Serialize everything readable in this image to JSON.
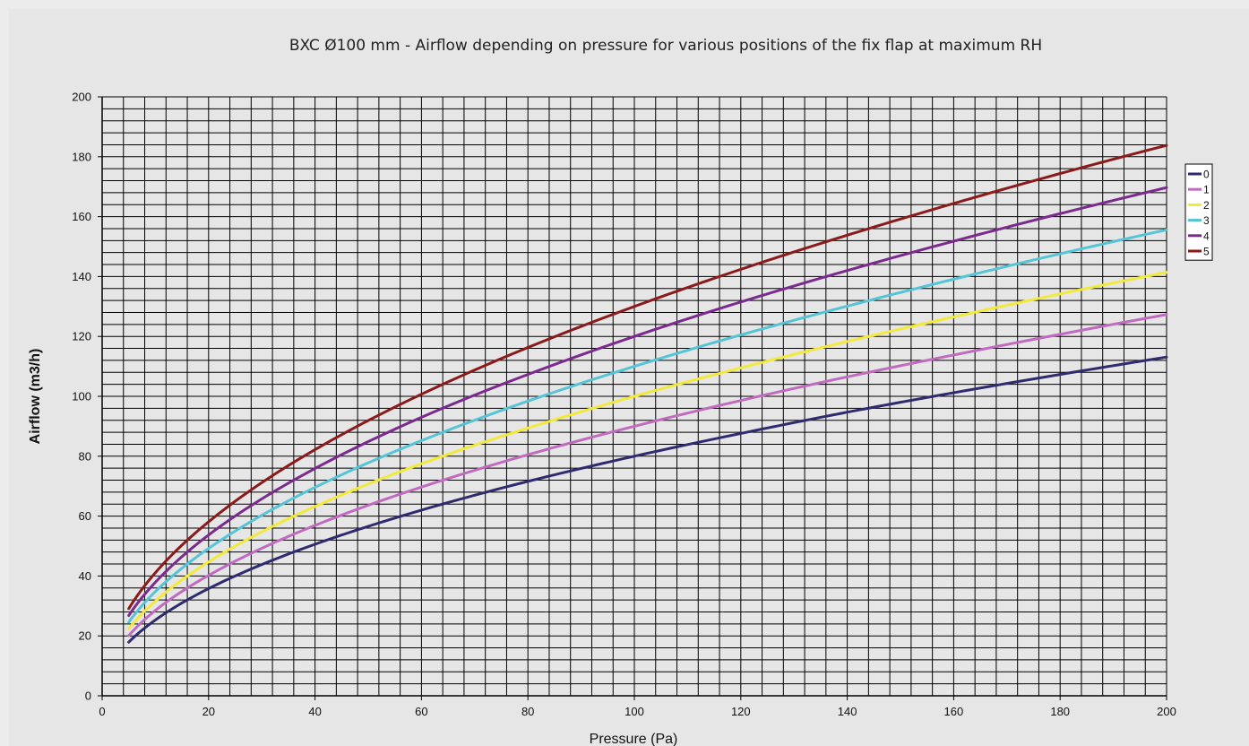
{
  "chart_data": {
    "type": "line",
    "title": "BXC Ø100 mm - Airflow depending on pressure for various positions of the fix flap at maximum RH",
    "xlabel": "Pressure (Pa)",
    "ylabel": "Airflow (m3/h)",
    "xlim": [
      0,
      200
    ],
    "ylim": [
      0,
      200
    ],
    "x_ticks": [
      0,
      20,
      40,
      60,
      80,
      100,
      120,
      140,
      160,
      180,
      200
    ],
    "y_ticks": [
      0,
      20,
      40,
      60,
      80,
      100,
      120,
      140,
      160,
      180,
      200
    ],
    "x_minor_step": 4,
    "y_minor_step": 4,
    "grid": true,
    "legend_position": "right",
    "x": [
      5,
      10,
      20,
      40,
      60,
      80,
      100,
      120,
      140,
      160,
      180,
      200
    ],
    "series": [
      {
        "name": "0",
        "color": "#2e2b6e",
        "values": [
          17.9,
          25.3,
          35.8,
          50.6,
          62.0,
          71.6,
          80.0,
          87.6,
          94.7,
          101.2,
          107.3,
          113.1
        ]
      },
      {
        "name": "1",
        "color": "#c06bc0",
        "values": [
          20.1,
          28.5,
          40.2,
          56.9,
          69.7,
          80.5,
          90.0,
          98.6,
          106.5,
          113.8,
          120.7,
          127.3
        ]
      },
      {
        "name": "2",
        "color": "#f2ea3a",
        "values": [
          22.4,
          31.6,
          44.7,
          63.2,
          77.5,
          89.4,
          100.0,
          109.5,
          118.3,
          126.5,
          134.2,
          141.4
        ]
      },
      {
        "name": "3",
        "color": "#55c4d6",
        "values": [
          24.6,
          34.8,
          49.2,
          69.6,
          85.2,
          98.4,
          110.0,
          120.5,
          130.1,
          139.1,
          147.6,
          155.6
        ]
      },
      {
        "name": "4",
        "color": "#7b2a8e",
        "values": [
          26.8,
          37.9,
          53.7,
          75.9,
          93.0,
          107.3,
          120.0,
          131.5,
          142.0,
          151.8,
          161.0,
          169.7
        ]
      },
      {
        "name": "5",
        "color": "#8b1a1a",
        "values": [
          29.1,
          41.1,
          58.1,
          82.2,
          100.7,
          116.3,
          130.0,
          142.4,
          153.8,
          164.4,
          174.4,
          183.8
        ]
      }
    ]
  }
}
